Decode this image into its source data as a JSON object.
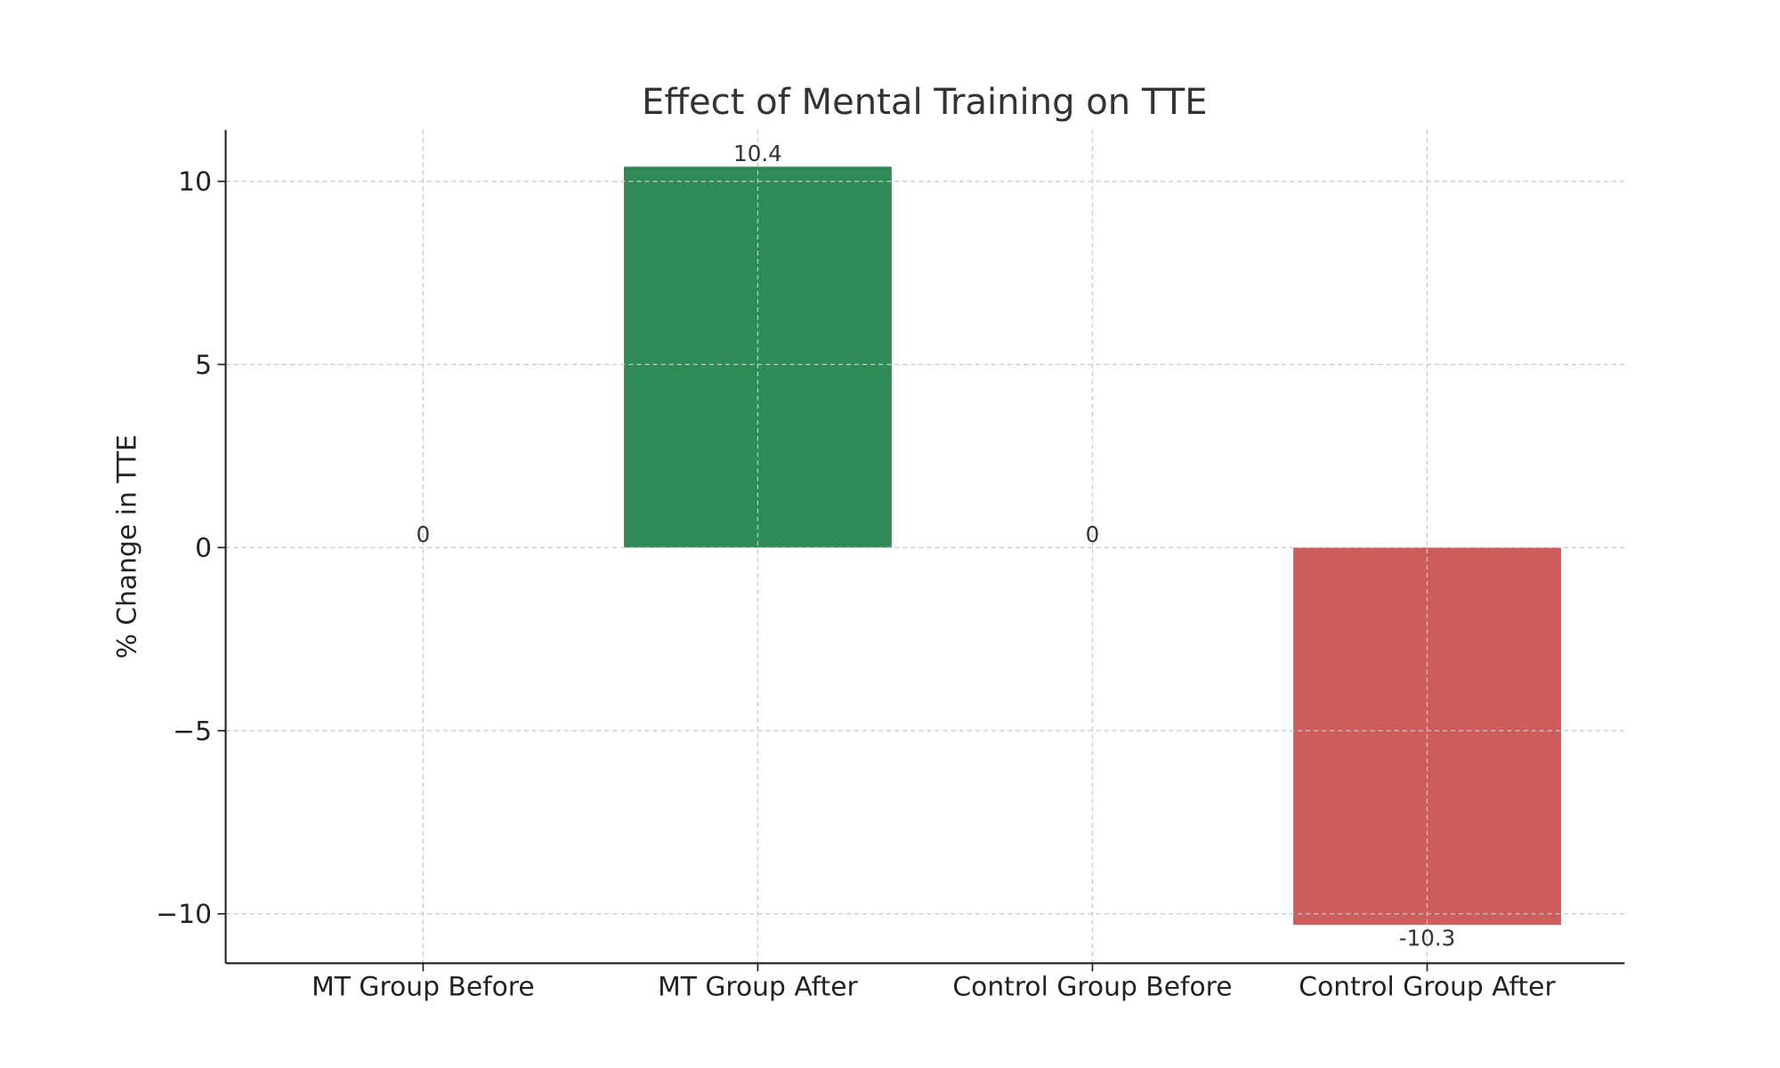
{
  "chart_data": {
    "type": "bar",
    "title": "Effect of Mental Training on TTE",
    "xlabel": "",
    "ylabel": "% Change in TTE",
    "categories": [
      "MT Group Before",
      "MT Group After",
      "Control Group Before",
      "Control Group After"
    ],
    "values": [
      0,
      10.4,
      0,
      -10.3
    ],
    "data_labels": [
      "0",
      "10.4",
      "0",
      "-10.3"
    ],
    "colors": [
      "#2e8b57",
      "#2e8b57",
      "#cd5c5c",
      "#cd5c5c"
    ],
    "ylim": [
      -11.35,
      11.4
    ],
    "yticks": [
      -10,
      -5,
      0,
      5,
      10
    ],
    "ytick_labels": [
      "−10",
      "−5",
      "0",
      "5",
      "10"
    ],
    "grid": true
  }
}
